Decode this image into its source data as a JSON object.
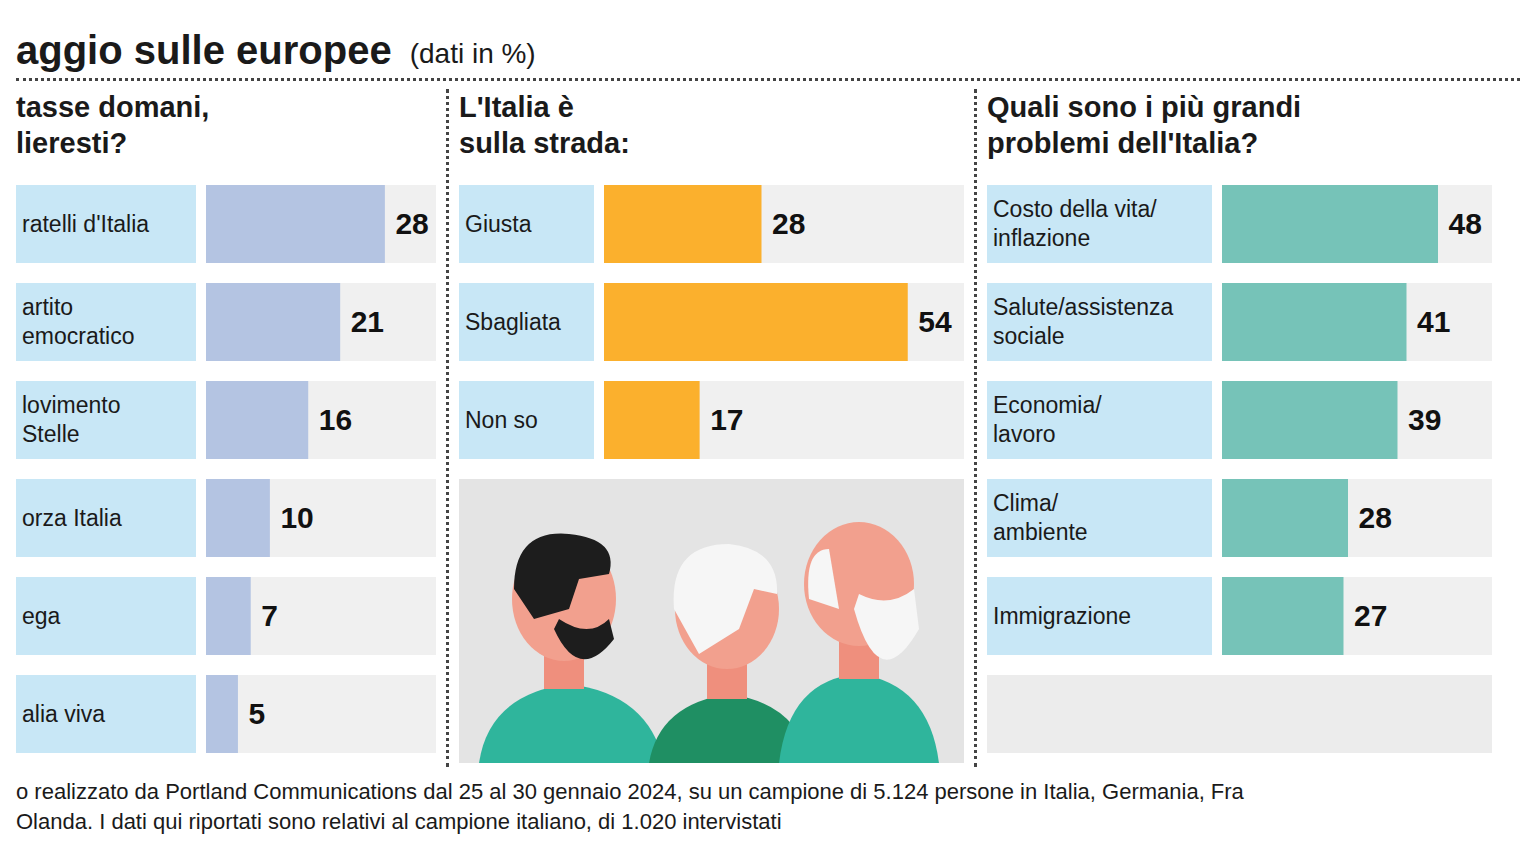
{
  "title": "aggio sulle europee",
  "subtitle": "(dati in %)",
  "note": [
    "o realizzato da Portland Communications dal 25 al 30 gennaio 2024, su un campione di 5.124 persone in Italia, Germania, Fra",
    "Olanda. I dati qui riportati sono relativi al campione italiano, di 1.020 intervistati"
  ],
  "chart_data": [
    {
      "type": "bar",
      "orientation": "horizontal",
      "title": "tasse domani,\nlieresti?",
      "categories": [
        "ratelli d'Italia",
        "artito\nemocratico",
        "lovimento\nStelle",
        "orza Italia",
        "ega",
        "alia viva"
      ],
      "values": [
        28,
        21,
        16,
        10,
        7,
        5
      ],
      "color": "#b4c4e2",
      "xlim": [
        0,
        36
      ],
      "data_labels": true,
      "tick_labels": "y"
    },
    {
      "type": "bar",
      "orientation": "horizontal",
      "title": "L'Italia è\nsulla strada:",
      "categories": [
        "Giusta",
        "Sbagliata",
        "Non so"
      ],
      "values": [
        28,
        54,
        17
      ],
      "color": "#fbb02d",
      "xlim": [
        0,
        64
      ],
      "data_labels": true,
      "tick_labels": "y"
    },
    {
      "type": "bar",
      "orientation": "horizontal",
      "title": "Quali sono i più grandi\nproblemi dell'Italia?",
      "categories": [
        "Costo della vita/\ninflazione",
        "Salute/assistenza\nsociale",
        "Economia/\nlavoro",
        "Clima/\nambiente",
        "Immigrazione"
      ],
      "values": [
        48,
        41,
        39,
        28,
        27
      ],
      "color": "#76c3b8",
      "xlim": [
        0,
        60
      ],
      "data_labels": true,
      "tick_labels": "y"
    }
  ]
}
